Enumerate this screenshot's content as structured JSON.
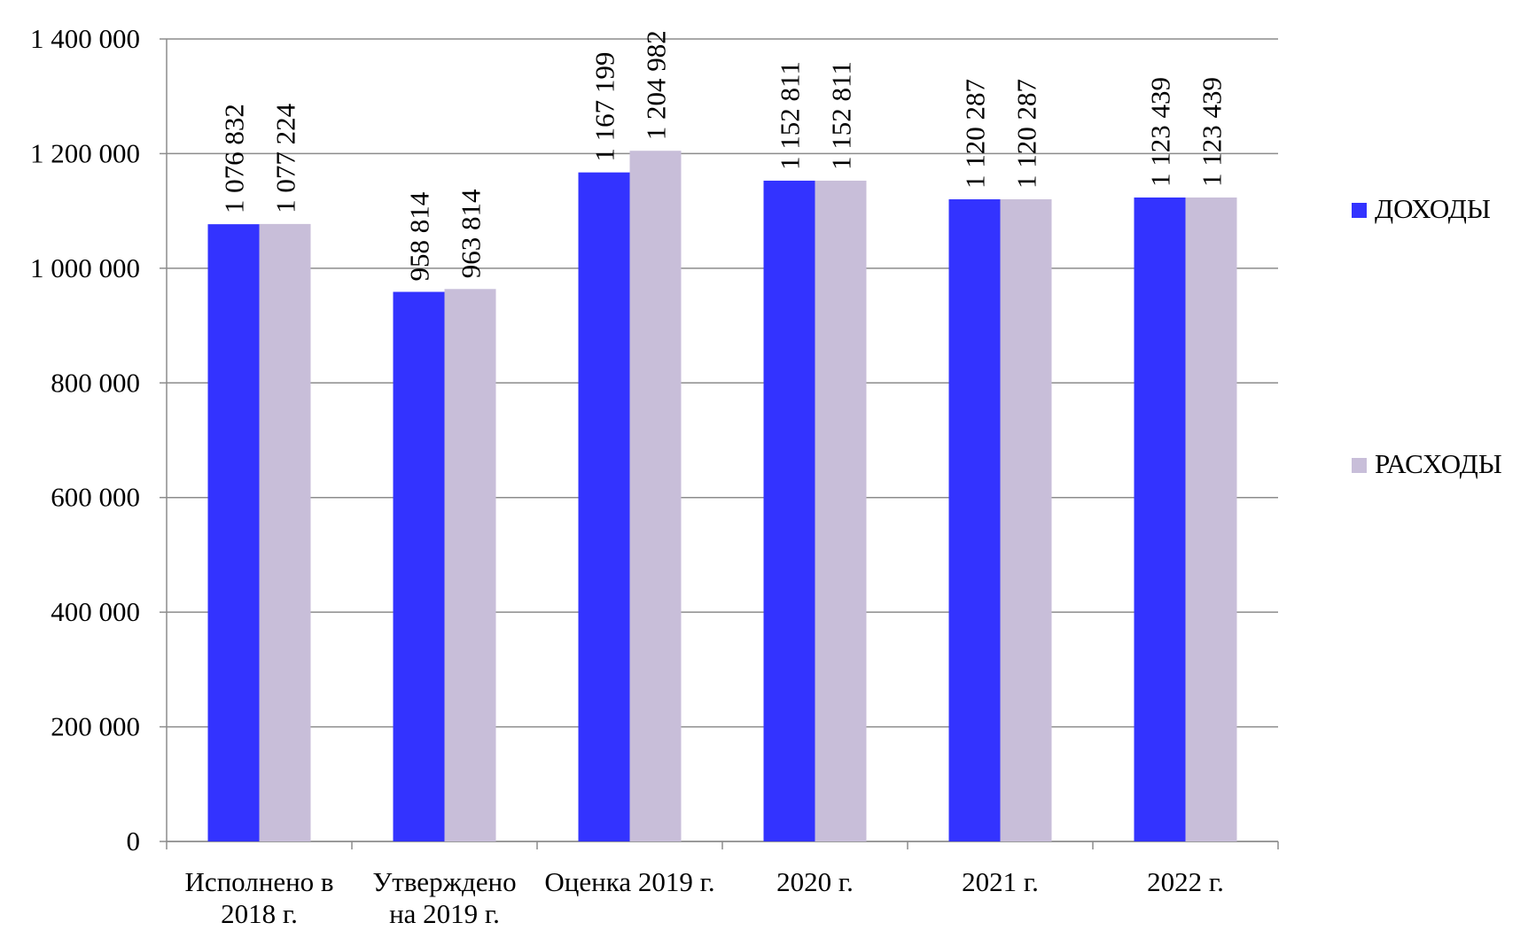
{
  "chart_data": {
    "type": "bar",
    "categories": [
      "Исполнено в 2018 г.",
      "Утверждено на 2019 г.",
      "Оценка 2019 г.",
      "2020 г.",
      "2021 г.",
      "2022 г."
    ],
    "series": [
      {
        "name": "ДОХОДЫ",
        "color": "#3333ff",
        "values": [
          1076832,
          958814,
          1167199,
          1152811,
          1120287,
          1123439
        ],
        "value_labels": [
          "1 076 832",
          "958 814",
          "1 167 199",
          "1 152 811",
          "1 120 287",
          "1 123 439"
        ]
      },
      {
        "name": "РАСХОДЫ",
        "color": "#c8bed9",
        "values": [
          1077224,
          963814,
          1204982,
          1152811,
          1120287,
          1123439
        ],
        "value_labels": [
          "1 077 224",
          "963 814",
          "1 204 982",
          "1 152 811",
          "1 120 287",
          "1 123 439"
        ]
      }
    ],
    "ylim": [
      0,
      1400000
    ],
    "yticks": [
      0,
      {
        "value": 200000,
        "label": "200 000"
      },
      {
        "value": 400000,
        "label": "400 000"
      },
      {
        "value": 600000,
        "label": "600 000"
      },
      {
        "value": 800000,
        "label": "800 000"
      },
      {
        "value": 1000000,
        "label": "1 000 000"
      },
      {
        "value": 1200000,
        "label": "1 200 000"
      },
      {
        "value": 1400000,
        "label": "1 400 000"
      }
    ],
    "grid": true,
    "legend": "right"
  }
}
